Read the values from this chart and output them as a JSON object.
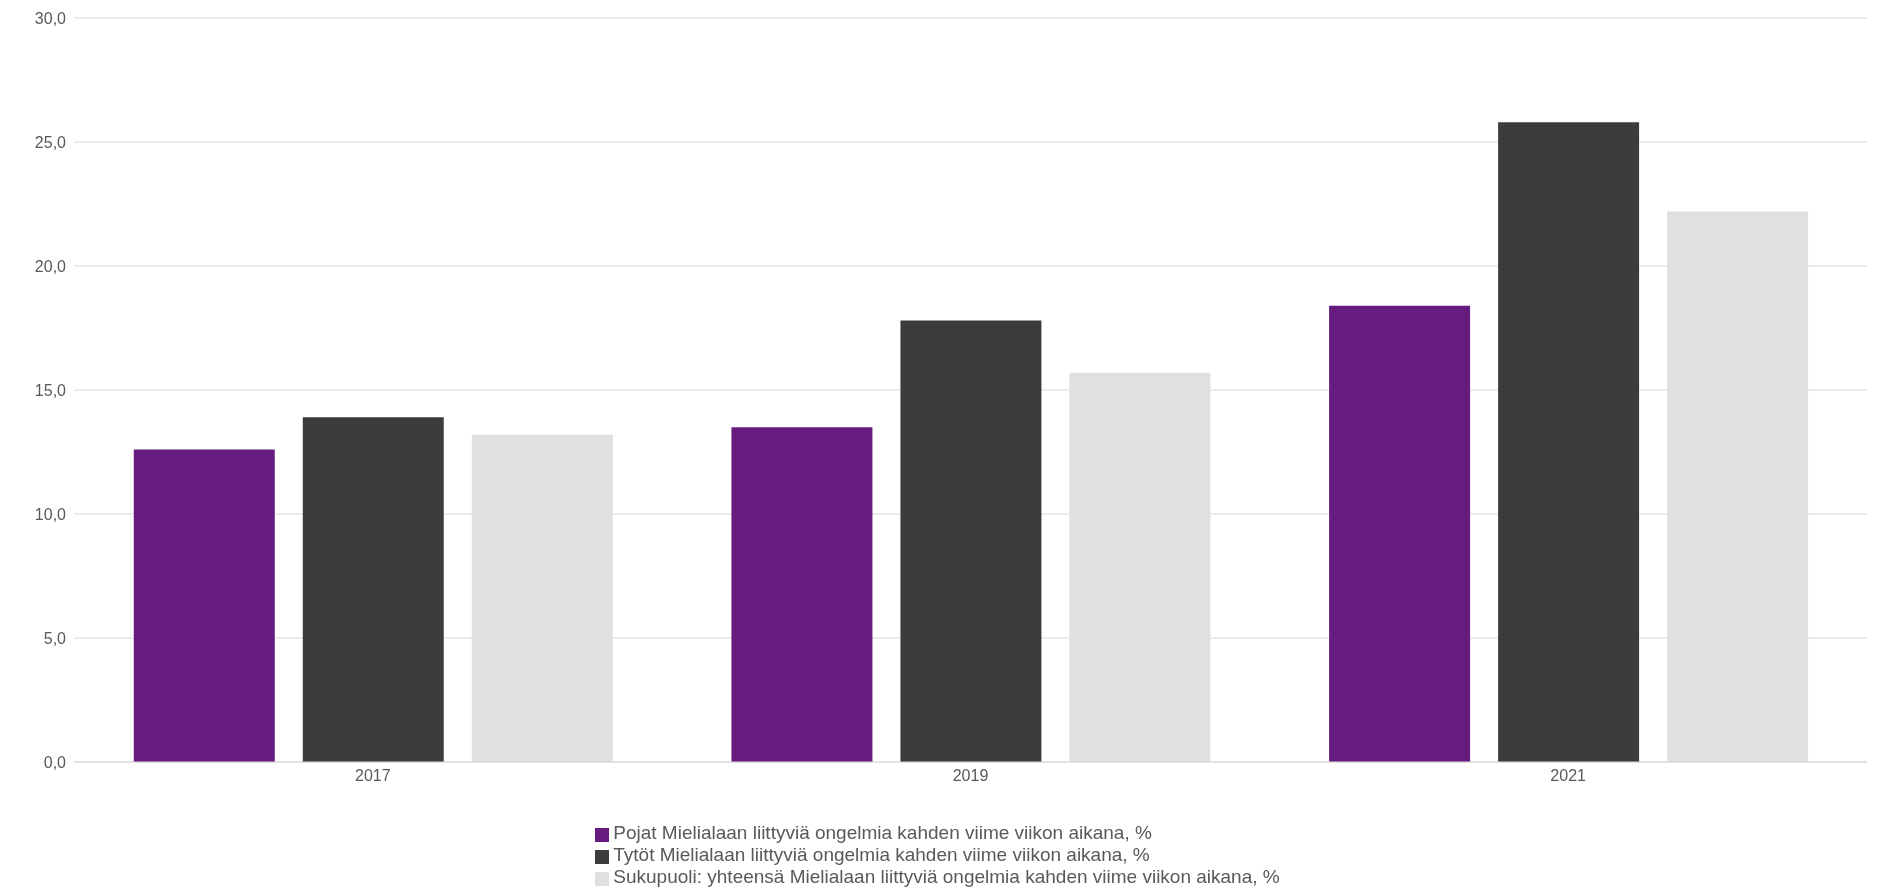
{
  "chart_data": {
    "type": "bar",
    "categories": [
      "2017",
      "2019",
      "2021"
    ],
    "series": [
      {
        "name": "Pojat Mielialaan liittyviä ongelmia kahden viime viikon aikana, %",
        "color": "#661c7e",
        "values": [
          12.6,
          13.5,
          18.4
        ]
      },
      {
        "name": "Tytöt Mielialaan liittyviä ongelmia kahden viime viikon aikana, %",
        "color": "#3c3c3c",
        "values": [
          13.9,
          17.8,
          25.8
        ]
      },
      {
        "name": "Sukupuoli: yhteensä Mielialaan liittyviä ongelmia kahden viime viikon aikana, %",
        "color": "#e0e0e0",
        "values": [
          13.2,
          15.7,
          22.2
        ]
      }
    ],
    "ylim": [
      0,
      30
    ],
    "yticks": [
      {
        "value": 0,
        "label": "0,0"
      },
      {
        "value": 5,
        "label": "5,0"
      },
      {
        "value": 10,
        "label": "10,0"
      },
      {
        "value": 15,
        "label": "15,0"
      },
      {
        "value": 20,
        "label": "20,0"
      },
      {
        "value": 25,
        "label": "25,0"
      },
      {
        "value": 30,
        "label": "30,0"
      }
    ],
    "grid": "y",
    "legend": "bottom"
  }
}
